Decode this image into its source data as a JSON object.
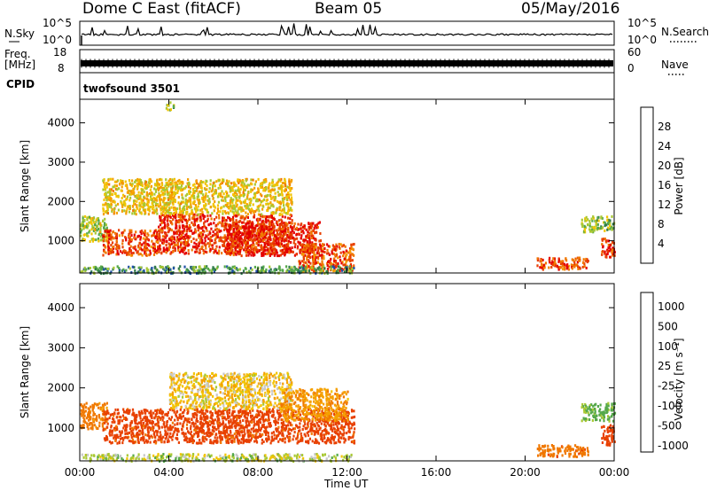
{
  "header": {
    "station": "Dome C East (fitACF)",
    "beam": "Beam 05",
    "date": "05/May/2016"
  },
  "strip_labels": {
    "nsky": "N.Sky",
    "nsky_ticks": [
      "10^5",
      "10^0"
    ],
    "nsearch": "N.Search",
    "freq_line1": "Freq.",
    "freq_line2": "[MHz]",
    "freq_ticks_left": [
      "18",
      "8"
    ],
    "freq_ticks_right": [
      "60",
      "0"
    ],
    "nave": "Nave",
    "cpid": "CPID",
    "cpid_value": "twofsound 3501"
  },
  "colors": {
    "power_scale": [
      "#0000ff",
      "#1f4fa8",
      "#2f7a4a",
      "#55a84a",
      "#a8c832",
      "#f2c400",
      "#f5a000",
      "#f07800",
      "#e84000",
      "#e40000"
    ],
    "velocity_scale": [
      "#0000ff",
      "#1f4fa8",
      "#2f7a4a",
      "#55a84a",
      "#a8c832",
      "#c8c8c8",
      "#f2c400",
      "#f5a000",
      "#f07800",
      "#e84000",
      "#e40000"
    ]
  },
  "chart_data": [
    {
      "type": "heatmap",
      "panel": "power",
      "ylabel": "Slant Range [km]",
      "y_ticks": [
        "1000",
        "2000",
        "3000",
        "4000"
      ],
      "yticks_values": [
        1000,
        2000,
        3000,
        4000
      ],
      "ylim": [
        180,
        4600
      ],
      "colorbar": {
        "label": "Power [dB]",
        "ticks": [
          "4",
          "8",
          "12",
          "16",
          "20",
          "24",
          "28"
        ],
        "tick_values": [
          4,
          8,
          12,
          16,
          20,
          24,
          28
        ],
        "range": [
          0,
          32
        ]
      },
      "regions": [
        {
          "x": [
            0.0,
            1.2
          ],
          "y": [
            1000,
            1650
          ],
          "value": 15
        },
        {
          "x": [
            1.0,
            3.5
          ],
          "y": [
            650,
            1300
          ],
          "value": 27
        },
        {
          "x": [
            3.5,
            9.5
          ],
          "y": [
            700,
            1700
          ],
          "value": 28
        },
        {
          "x": [
            6.5,
            10.8
          ],
          "y": [
            650,
            1500
          ],
          "value": 29
        },
        {
          "x": [
            9.8,
            12.3
          ],
          "y": [
            250,
            950
          ],
          "value": 26
        },
        {
          "x": [
            1.0,
            9.5
          ],
          "y": [
            1700,
            2600
          ],
          "value": 18
        },
        {
          "x": [
            3.8,
            4.2
          ],
          "y": [
            4350,
            4550
          ],
          "value": 12
        },
        {
          "x": [
            0.0,
            12.3
          ],
          "y": [
            200,
            380
          ],
          "value": 10
        },
        {
          "x": [
            20.5,
            22.8
          ],
          "y": [
            300,
            600
          ],
          "value": 27
        },
        {
          "x": [
            22.5,
            24.0
          ],
          "y": [
            1250,
            1650
          ],
          "value": 13
        },
        {
          "x": [
            23.4,
            24.0
          ],
          "y": [
            600,
            1100
          ],
          "value": 28
        }
      ]
    },
    {
      "type": "heatmap",
      "panel": "velocity",
      "ylabel": "Slant Range [km]",
      "xlabel": "Time UT",
      "x_ticks": [
        "00:00",
        "04:00",
        "08:00",
        "12:00",
        "16:00",
        "20:00",
        "00:00"
      ],
      "xticks_values": [
        0,
        4,
        8,
        12,
        16,
        20,
        24
      ],
      "xlim": [
        0,
        24
      ],
      "y_ticks": [
        "1000",
        "2000",
        "3000",
        "4000"
      ],
      "yticks_values": [
        1000,
        2000,
        3000,
        4000
      ],
      "ylim": [
        180,
        4600
      ],
      "colorbar": {
        "label": "Velocity [m s⁻¹]",
        "ticks": [
          "1000",
          "500",
          "100",
          "25",
          "-25",
          "-100",
          "-500",
          "-1000"
        ],
        "tick_values": [
          1000,
          500,
          100,
          25,
          -25,
          -100,
          -500,
          -1000
        ]
      },
      "regions": [
        {
          "x": [
            0.0,
            1.2
          ],
          "y": [
            1000,
            1650
          ],
          "value": -150
        },
        {
          "x": [
            1.0,
            12.3
          ],
          "y": [
            650,
            1500
          ],
          "value": -300
        },
        {
          "x": [
            4.0,
            9.5
          ],
          "y": [
            1500,
            2400
          ],
          "value": 0
        },
        {
          "x": [
            9.0,
            12.0
          ],
          "y": [
            1200,
            2000
          ],
          "value": -80
        },
        {
          "x": [
            0.0,
            12.3
          ],
          "y": [
            200,
            380
          ],
          "value": 60
        },
        {
          "x": [
            20.5,
            22.8
          ],
          "y": [
            300,
            600
          ],
          "value": -200
        },
        {
          "x": [
            22.5,
            24.0
          ],
          "y": [
            1200,
            1650
          ],
          "value": 120
        },
        {
          "x": [
            23.4,
            24.0
          ],
          "y": [
            600,
            1100
          ],
          "value": -400
        }
      ]
    }
  ]
}
